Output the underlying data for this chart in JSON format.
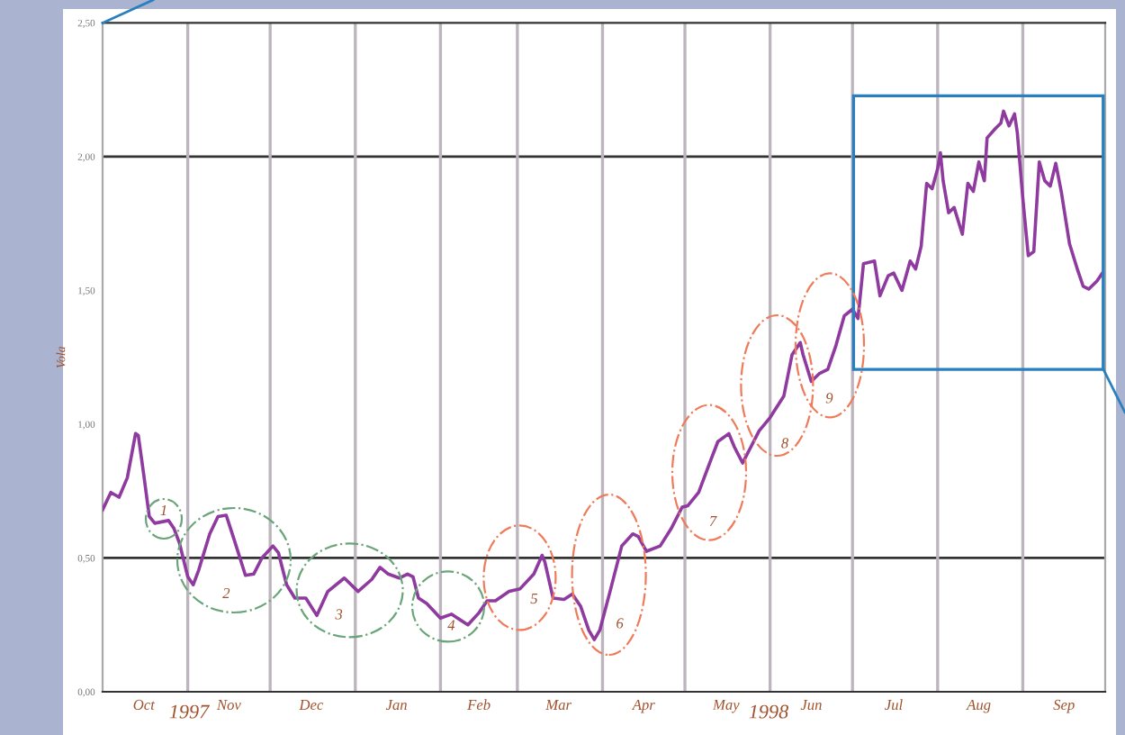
{
  "chart_data": {
    "type": "line",
    "ylabel": "Vola",
    "x": [
      "1997-10-01",
      "1997-10-04",
      "1997-10-07",
      "1997-10-10",
      "1997-10-13",
      "1997-10-14",
      "1997-10-16",
      "1997-10-18",
      "1997-10-20",
      "1997-10-25",
      "1997-10-27",
      "1997-10-29",
      "1997-11-01",
      "1997-11-03",
      "1997-11-05",
      "1997-11-09",
      "1997-11-12",
      "1997-11-15",
      "1997-11-18",
      "1997-11-22",
      "1997-11-25",
      "1997-11-28",
      "1997-12-02",
      "1997-12-04",
      "1997-12-07",
      "1997-12-10",
      "1997-12-14",
      "1997-12-18",
      "1997-12-22",
      "1997-12-28",
      "1998-01-02",
      "1998-01-07",
      "1998-01-10",
      "1998-01-13",
      "1998-01-17",
      "1998-01-20",
      "1998-01-22",
      "1998-01-24",
      "1998-01-27",
      "1998-02-01",
      "1998-02-05",
      "1998-02-11",
      "1998-02-15",
      "1998-02-18",
      "1998-02-21",
      "1998-02-26",
      "1998-03-02",
      "1998-03-07",
      "1998-03-10",
      "1998-03-11",
      "1998-03-14",
      "1998-03-18",
      "1998-03-21",
      "1998-03-24",
      "1998-03-27",
      "1998-03-29",
      "1998-03-31",
      "1998-04-04",
      "1998-04-08",
      "1998-04-12",
      "1998-04-14",
      "1998-04-17",
      "1998-04-22",
      "1998-04-26",
      "1998-04-30",
      "1998-05-02",
      "1998-05-06",
      "1998-05-10",
      "1998-05-13",
      "1998-05-17",
      "1998-05-19",
      "1998-05-22",
      "1998-05-25",
      "1998-05-28",
      "1998-06-01",
      "1998-06-06",
      "1998-06-09",
      "1998-06-12",
      "1998-06-13",
      "1998-06-16",
      "1998-06-19",
      "1998-06-22",
      "1998-06-25",
      "1998-06-28",
      "1998-07-01",
      "1998-07-03",
      "1998-07-05",
      "1998-07-09",
      "1998-07-11",
      "1998-07-14",
      "1998-07-16",
      "1998-07-19",
      "1998-07-22",
      "1998-07-24",
      "1998-07-26",
      "1998-07-28",
      "1998-07-30",
      "1998-08-01",
      "1998-08-02",
      "1998-08-03",
      "1998-08-05",
      "1998-08-07",
      "1998-08-10",
      "1998-08-12",
      "1998-08-14",
      "1998-08-16",
      "1998-08-18",
      "1998-08-19",
      "1998-08-22",
      "1998-08-24",
      "1998-08-25",
      "1998-08-27",
      "1998-08-29",
      "1998-08-30",
      "1998-09-01",
      "1998-09-03",
      "1998-09-05",
      "1998-09-07",
      "1998-09-09",
      "1998-09-11",
      "1998-09-13",
      "1998-09-15",
      "1998-09-18",
      "1998-09-21",
      "1998-09-23",
      "1998-09-25",
      "1998-09-28",
      "1998-09-30"
    ],
    "series": [
      {
        "color": "#8e3a9e",
        "values": [
          0.68,
          0.745,
          0.727,
          0.8,
          0.965,
          0.958,
          0.81,
          0.655,
          0.63,
          0.64,
          0.61,
          0.555,
          0.43,
          0.4,
          0.455,
          0.59,
          0.655,
          0.66,
          0.565,
          0.435,
          0.44,
          0.5,
          0.545,
          0.52,
          0.4,
          0.35,
          0.35,
          0.285,
          0.375,
          0.425,
          0.375,
          0.42,
          0.465,
          0.44,
          0.425,
          0.44,
          0.43,
          0.35,
          0.33,
          0.275,
          0.29,
          0.25,
          0.295,
          0.34,
          0.34,
          0.375,
          0.385,
          0.44,
          0.51,
          0.485,
          0.35,
          0.345,
          0.365,
          0.32,
          0.23,
          0.195,
          0.23,
          0.385,
          0.545,
          0.59,
          0.58,
          0.525,
          0.545,
          0.61,
          0.69,
          0.695,
          0.745,
          0.855,
          0.935,
          0.965,
          0.915,
          0.855,
          0.915,
          0.975,
          1.025,
          1.105,
          1.26,
          1.305,
          1.26,
          1.16,
          1.19,
          1.205,
          1.295,
          1.405,
          1.43,
          1.395,
          1.6,
          1.61,
          1.48,
          1.555,
          1.565,
          1.5,
          1.61,
          1.58,
          1.665,
          1.9,
          1.88,
          1.955,
          2.015,
          1.91,
          1.79,
          1.81,
          1.71,
          1.9,
          1.87,
          1.98,
          1.91,
          2.07,
          2.105,
          2.125,
          2.17,
          2.115,
          2.16,
          2.09,
          1.845,
          1.63,
          1.645,
          1.98,
          1.91,
          1.89,
          1.975,
          1.87,
          1.675,
          1.575,
          1.515,
          1.505,
          1.535,
          1.565
        ]
      }
    ],
    "xlim": [
      "1997-10-01",
      "1998-10-01"
    ],
    "xticks": [
      {
        "value": "1997-10-16",
        "label": "Oct"
      },
      {
        "value": "1997-11-16",
        "label": "Nov"
      },
      {
        "value": "1997-12-16",
        "label": "Dec"
      },
      {
        "value": "1998-01-16",
        "label": "Jan"
      },
      {
        "value": "1998-02-15",
        "label": "Feb"
      },
      {
        "value": "1998-03-16",
        "label": "Mar"
      },
      {
        "value": "1998-04-16",
        "label": "Apr"
      },
      {
        "value": "1998-05-16",
        "label": "May"
      },
      {
        "value": "1998-06-16",
        "label": "Jun"
      },
      {
        "value": "1998-07-16",
        "label": "Jul"
      },
      {
        "value": "1998-08-16",
        "label": "Aug"
      },
      {
        "value": "1998-09-16",
        "label": "Sep"
      }
    ],
    "ylim": [
      0,
      2.5
    ],
    "yticks": [
      {
        "value": 0,
        "label": "0,00"
      },
      {
        "value": 0.5,
        "label": "0,50"
      },
      {
        "value": 1.0,
        "label": "1,00"
      },
      {
        "value": 1.5,
        "label": "1,50"
      },
      {
        "value": 2.0,
        "label": "2,00"
      },
      {
        "value": 2.5,
        "label": "2,50"
      }
    ],
    "ref_lines": [
      {
        "axis": "y",
        "value": 0.5,
        "color": "#333333"
      },
      {
        "axis": "y",
        "value": 2.0,
        "color": "#333333"
      },
      {
        "axis": "x",
        "value": "1997-11-01",
        "color": "#bdb5bd"
      },
      {
        "axis": "x",
        "value": "1997-12-01",
        "color": "#bdb5bd"
      },
      {
        "axis": "x",
        "value": "1998-01-01",
        "color": "#bdb5bd"
      },
      {
        "axis": "x",
        "value": "1998-02-01",
        "color": "#bdb5bd"
      },
      {
        "axis": "x",
        "value": "1998-03-01",
        "color": "#bdb5bd"
      },
      {
        "axis": "x",
        "value": "1998-04-01",
        "color": "#bdb5bd"
      },
      {
        "axis": "x",
        "value": "1998-05-01",
        "color": "#bdb5bd"
      },
      {
        "axis": "x",
        "value": "1998-06-01",
        "color": "#bdb5bd"
      },
      {
        "axis": "x",
        "value": "1998-07-01",
        "color": "#bdb5bd"
      },
      {
        "axis": "x",
        "value": "1998-08-01",
        "color": "#bdb5bd"
      },
      {
        "axis": "x",
        "value": "1998-09-01",
        "color": "#bdb5bd"
      }
    ],
    "annotations": [
      "1",
      "2",
      "3",
      "4",
      "5",
      "6",
      "7",
      "8",
      "9",
      "1997",
      "1998"
    ],
    "grid": false,
    "legend": false,
    "marker": "none",
    "line_style": "solid"
  }
}
